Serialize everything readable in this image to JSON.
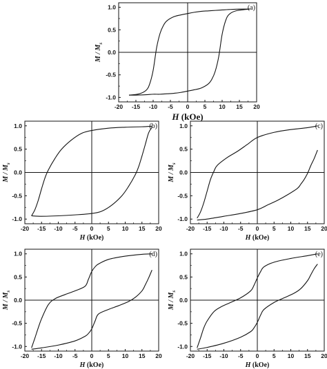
{
  "chart_data": [
    {
      "panel": "(a)",
      "type": "line",
      "xlabel_italic": "H",
      "xlabel_unit": " (kOe)",
      "ylabel": "M / M",
      "ylabel_sub": "s",
      "xlim": [
        -20,
        20
      ],
      "ylim": [
        -1.1,
        1.1
      ],
      "xticks": [
        -20,
        -15,
        -10,
        -5,
        0,
        5,
        10,
        15,
        20
      ],
      "yticks": [
        -1.0,
        -0.5,
        0.0,
        0.5,
        1.0
      ],
      "grid": false,
      "series": [
        {
          "branch": "descending",
          "x": [
            18,
            15,
            12,
            10,
            8,
            6,
            4,
            2,
            0,
            -2,
            -4,
            -6,
            -7,
            -8,
            -9,
            -10,
            -11,
            -12,
            -14,
            -17
          ],
          "y": [
            0.96,
            0.96,
            0.95,
            0.94,
            0.93,
            0.92,
            0.91,
            0.89,
            0.86,
            0.83,
            0.79,
            0.7,
            0.6,
            0.42,
            0.1,
            -0.4,
            -0.7,
            -0.84,
            -0.92,
            -0.95
          ]
        },
        {
          "branch": "ascending",
          "x": [
            -17,
            -15,
            -12,
            -10,
            -8,
            -6,
            -4,
            -2,
            0,
            2,
            4,
            6,
            7,
            8,
            9,
            10,
            11,
            12,
            14,
            18
          ],
          "y": [
            -0.95,
            -0.95,
            -0.94,
            -0.93,
            -0.93,
            -0.92,
            -0.91,
            -0.89,
            -0.86,
            -0.83,
            -0.79,
            -0.7,
            -0.6,
            -0.42,
            -0.1,
            0.4,
            0.7,
            0.84,
            0.92,
            0.96
          ]
        }
      ]
    },
    {
      "panel": "(b)",
      "type": "line",
      "xlabel_italic": "H",
      "xlabel_unit": " (kOe)",
      "ylabel": "M / M",
      "ylabel_sub": "s",
      "xlim": [
        -20,
        20
      ],
      "ylim": [
        -1.1,
        1.1
      ],
      "xticks": [
        -20,
        -15,
        -10,
        -5,
        0,
        5,
        10,
        15,
        20
      ],
      "yticks": [
        -1.0,
        -0.5,
        0.0,
        0.5,
        1.0
      ],
      "grid": false,
      "series": [
        {
          "branch": "descending",
          "x": [
            18,
            15,
            10,
            5,
            0,
            -3,
            -6,
            -9,
            -11,
            -13,
            -14,
            -15,
            -16,
            -17,
            -18
          ],
          "y": [
            0.99,
            0.98,
            0.97,
            0.95,
            0.9,
            0.84,
            0.7,
            0.5,
            0.3,
            0.05,
            -0.12,
            -0.35,
            -0.6,
            -0.8,
            -0.93
          ]
        },
        {
          "branch": "ascending",
          "x": [
            -18,
            -15,
            -10,
            -5,
            0,
            3,
            6,
            9,
            11,
            13,
            14,
            15,
            16,
            17,
            18
          ],
          "y": [
            -0.93,
            -0.94,
            -0.93,
            -0.91,
            -0.88,
            -0.83,
            -0.7,
            -0.5,
            -0.3,
            -0.05,
            0.12,
            0.35,
            0.6,
            0.85,
            0.97
          ]
        }
      ]
    },
    {
      "panel": "(c)",
      "type": "line",
      "xlabel_italic": "H",
      "xlabel_unit": " (kOe)",
      "ylabel": "M / M",
      "ylabel_sub": "s",
      "xlim": [
        -20,
        20
      ],
      "ylim": [
        -1.1,
        1.1
      ],
      "xticks": [
        -20,
        -15,
        -10,
        -5,
        0,
        5,
        10,
        15,
        20
      ],
      "yticks": [
        -1.0,
        -0.5,
        0.0,
        0.5,
        1.0
      ],
      "grid": false,
      "series": [
        {
          "branch": "descending",
          "x": [
            18,
            15,
            10,
            5,
            0,
            -3,
            -6,
            -9,
            -12,
            -13,
            -14,
            -15,
            -16,
            -17,
            -18
          ],
          "y": [
            1.0,
            0.96,
            0.92,
            0.86,
            0.75,
            0.6,
            0.45,
            0.32,
            0.15,
            0.02,
            -0.15,
            -0.4,
            -0.65,
            -0.85,
            -0.98
          ]
        },
        {
          "branch": "ascending",
          "x": [
            -18,
            -15,
            -10,
            -5,
            0,
            3,
            6,
            9,
            12,
            13,
            14,
            15,
            16,
            17,
            18
          ],
          "y": [
            -1.02,
            -1.0,
            -0.94,
            -0.88,
            -0.8,
            -0.7,
            -0.6,
            -0.48,
            -0.34,
            -0.25,
            -0.15,
            -0.02,
            0.15,
            0.3,
            0.48
          ]
        }
      ]
    },
    {
      "panel": "(d)",
      "type": "line",
      "xlabel_italic": "H",
      "xlabel_unit": " (kOe)",
      "ylabel": "M / M",
      "ylabel_sub": "s",
      "xlim": [
        -20,
        20
      ],
      "ylim": [
        -1.1,
        1.1
      ],
      "xticks": [
        -20,
        -15,
        -10,
        -5,
        0,
        5,
        10,
        15,
        20
      ],
      "yticks": [
        -1.0,
        -0.5,
        0.0,
        0.5,
        1.0
      ],
      "grid": false,
      "series": [
        {
          "branch": "descending",
          "x": [
            18,
            15,
            10,
            5,
            2,
            1,
            0,
            -1,
            -2,
            -5,
            -8,
            -11,
            -13,
            -15,
            -16,
            -17,
            -18
          ],
          "y": [
            1.0,
            0.99,
            0.95,
            0.88,
            0.78,
            0.72,
            0.62,
            0.45,
            0.3,
            0.2,
            0.12,
            0.03,
            -0.1,
            -0.4,
            -0.6,
            -0.82,
            -1.03
          ]
        },
        {
          "branch": "ascending",
          "x": [
            -18,
            -15,
            -10,
            -5,
            -2,
            -1,
            0,
            1,
            2,
            5,
            8,
            11,
            13,
            15,
            16,
            17,
            18
          ],
          "y": [
            -1.06,
            -1.03,
            -0.97,
            -0.88,
            -0.78,
            -0.72,
            -0.62,
            -0.45,
            -0.3,
            -0.2,
            -0.12,
            -0.03,
            0.06,
            0.2,
            0.33,
            0.48,
            0.65
          ]
        }
      ]
    },
    {
      "panel": "(e)",
      "type": "line",
      "xlabel_italic": "H",
      "xlabel_unit": " (kOe)",
      "ylabel": "M / M",
      "ylabel_sub": "s",
      "xlim": [
        -20,
        20
      ],
      "ylim": [
        -1.1,
        1.1
      ],
      "xticks": [
        -20,
        -15,
        -10,
        -5,
        0,
        5,
        10,
        15,
        20
      ],
      "yticks": [
        -1.0,
        -0.5,
        0.0,
        0.5,
        1.0
      ],
      "grid": false,
      "series": [
        {
          "branch": "descending",
          "x": [
            18,
            15,
            10,
            5,
            2,
            1,
            0,
            -1,
            -2,
            -5,
            -8,
            -11,
            -13,
            -15,
            -16,
            -17,
            -18
          ],
          "y": [
            1.0,
            0.96,
            0.9,
            0.82,
            0.72,
            0.62,
            0.48,
            0.32,
            0.2,
            0.05,
            -0.05,
            -0.15,
            -0.25,
            -0.45,
            -0.6,
            -0.82,
            -1.03
          ]
        },
        {
          "branch": "ascending",
          "x": [
            -18,
            -15,
            -10,
            -5,
            -2,
            -1,
            0,
            1,
            2,
            5,
            8,
            11,
            13,
            15,
            16,
            17,
            18
          ],
          "y": [
            -1.06,
            -1.02,
            -0.93,
            -0.8,
            -0.68,
            -0.6,
            -0.48,
            -0.32,
            -0.2,
            -0.05,
            0.05,
            0.15,
            0.25,
            0.42,
            0.55,
            0.68,
            0.78
          ]
        }
      ]
    }
  ]
}
